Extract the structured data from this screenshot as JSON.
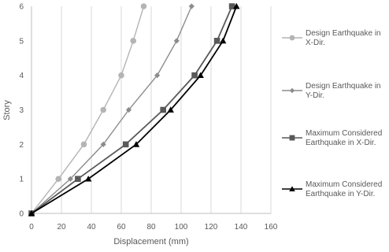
{
  "chart_data": {
    "type": "line",
    "xlabel": "Displacement (mm)",
    "ylabel": "Story",
    "xlim": [
      0,
      160
    ],
    "ylim": [
      0,
      6
    ],
    "x_ticks": [
      "0",
      "20",
      "40",
      "60",
      "80",
      "100",
      "120",
      "140",
      "160"
    ],
    "y_ticks": [
      "0",
      "1",
      "2",
      "3",
      "4",
      "5",
      "6"
    ],
    "grid": "vertical",
    "legend_position": "right",
    "series": [
      {
        "name": "Design Earthquake in X-Dir.",
        "color": "#b4b4b4",
        "marker": "circle",
        "points": [
          [
            0,
            0
          ],
          [
            18,
            1
          ],
          [
            35,
            2
          ],
          [
            48,
            3
          ],
          [
            60,
            4
          ],
          [
            68,
            5
          ],
          [
            75,
            6
          ]
        ]
      },
      {
        "name": "Design Earthquake in Y-Dir.",
        "color": "#8c8c8c",
        "marker": "diamond",
        "points": [
          [
            0,
            0
          ],
          [
            26,
            1
          ],
          [
            48,
            2
          ],
          [
            65,
            3
          ],
          [
            84,
            4
          ],
          [
            97,
            5
          ],
          [
            107,
            6
          ]
        ]
      },
      {
        "name": "Maximum Considered Earthquake in X-Dir.",
        "color": "#595959",
        "marker": "square",
        "points": [
          [
            0,
            0
          ],
          [
            31,
            1
          ],
          [
            63,
            2
          ],
          [
            88,
            3
          ],
          [
            109,
            4
          ],
          [
            124,
            5
          ],
          [
            134,
            6
          ]
        ]
      },
      {
        "name": "Maximum Considered Earthquake in Y-Dir.",
        "color": "#000000",
        "marker": "triangle",
        "points": [
          [
            0,
            0
          ],
          [
            38,
            1
          ],
          [
            70,
            2
          ],
          [
            93,
            3
          ],
          [
            113,
            4
          ],
          [
            128,
            5
          ],
          [
            137,
            6
          ]
        ]
      }
    ],
    "legend_lines": [
      [
        "Design Earthquake in",
        "X-Dir."
      ],
      [
        "Design Earthquake in",
        "Y-Dir."
      ],
      [
        "Maximum Considered",
        "Earthquake in X-Dir."
      ],
      [
        "Maximum Considered",
        "Earthquake in Y-Dir."
      ]
    ]
  }
}
